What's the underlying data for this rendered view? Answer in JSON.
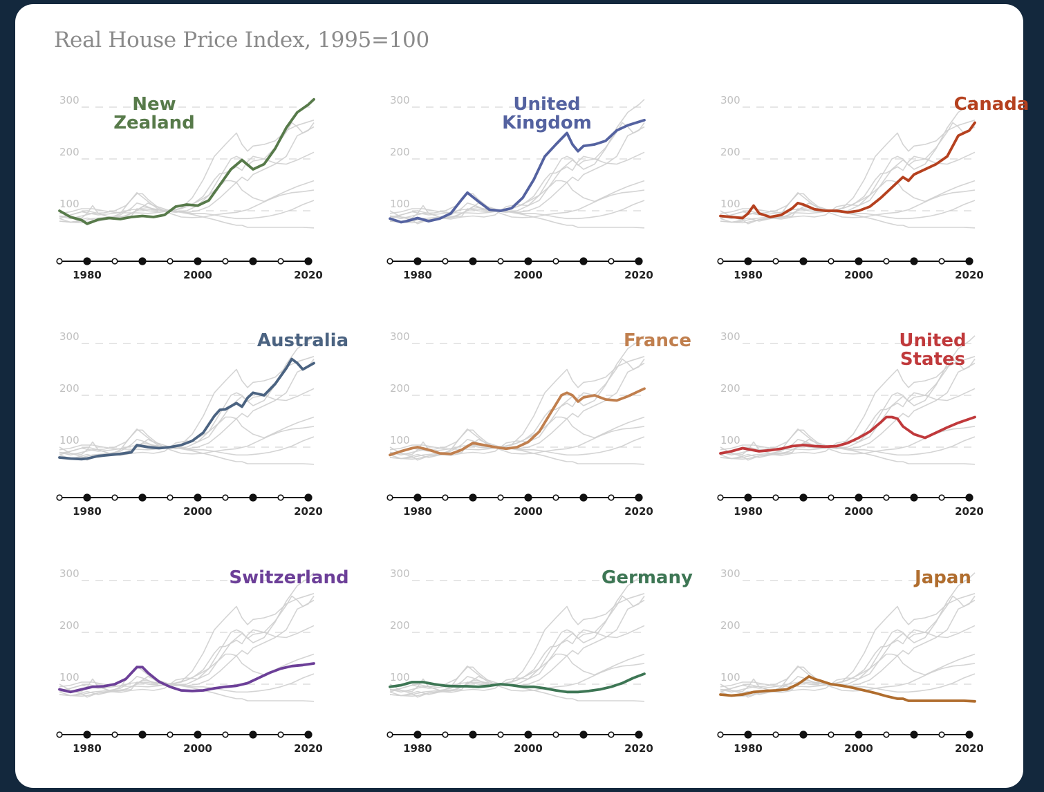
{
  "page_title": "Real House Price Index, 1995=100",
  "chart_data": {
    "type": "line",
    "title": "Real House Price Index, 1995=100",
    "xlim": [
      1975,
      2021
    ],
    "ylim": [
      0,
      300
    ],
    "y_ticks": [
      "300",
      "200",
      "100"
    ],
    "x_ticks": [
      "1980",
      "2000",
      "2020"
    ],
    "timeline_markers": [
      1975,
      1980,
      1985,
      1990,
      1995,
      2000,
      2005,
      2010,
      2015,
      2020
    ],
    "grid": "dashed-horizontal",
    "background_series_color": "#cfcfcf",
    "series": [
      {
        "name": "New Zealand",
        "label": "New\nZealand",
        "color": "#577a4a",
        "x": [
          1975,
          1977,
          1979,
          1980,
          1982,
          1984,
          1986,
          1988,
          1990,
          1992,
          1994,
          1996,
          1998,
          2000,
          2002,
          2004,
          2006,
          2008,
          2010,
          2012,
          2014,
          2016,
          2018,
          2020,
          2021
        ],
        "y": [
          100,
          88,
          82,
          75,
          83,
          86,
          84,
          88,
          90,
          88,
          92,
          108,
          112,
          110,
          120,
          150,
          180,
          198,
          180,
          190,
          220,
          260,
          290,
          305,
          315
        ]
      },
      {
        "name": "United Kingdom",
        "label": "United\nKingdom",
        "color": "#5462a0",
        "x": [
          1975,
          1977,
          1978,
          1980,
          1982,
          1984,
          1986,
          1988,
          1989,
          1991,
          1993,
          1995,
          1997,
          1999,
          2001,
          2003,
          2005,
          2007,
          2008,
          2009,
          2010,
          2012,
          2014,
          2016,
          2018,
          2021
        ],
        "y": [
          85,
          78,
          80,
          86,
          80,
          85,
          95,
          122,
          135,
          118,
          102,
          100,
          105,
          125,
          160,
          205,
          228,
          250,
          228,
          215,
          225,
          228,
          235,
          255,
          265,
          275
        ]
      },
      {
        "name": "Canada",
        "label": "Canada",
        "color": "#b5411f",
        "x": [
          1975,
          1977,
          1979,
          1980,
          1981,
          1982,
          1984,
          1986,
          1988,
          1989,
          1990,
          1992,
          1994,
          1996,
          1998,
          2000,
          2002,
          2004,
          2006,
          2008,
          2009,
          2010,
          2012,
          2014,
          2016,
          2018,
          2019,
          2020,
          2021
        ],
        "y": [
          90,
          88,
          86,
          95,
          110,
          95,
          88,
          92,
          105,
          115,
          112,
          103,
          100,
          100,
          97,
          100,
          108,
          125,
          145,
          165,
          158,
          170,
          180,
          190,
          205,
          245,
          250,
          255,
          270
        ]
      },
      {
        "name": "Australia",
        "label": "Australia",
        "color": "#4b6381",
        "x": [
          1975,
          1977,
          1979,
          1980,
          1982,
          1984,
          1986,
          1988,
          1989,
          1991,
          1993,
          1995,
          1997,
          1999,
          2001,
          2003,
          2004,
          2005,
          2007,
          2008,
          2009,
          2010,
          2012,
          2014,
          2016,
          2017,
          2018,
          2019,
          2021
        ],
        "y": [
          80,
          78,
          77,
          78,
          83,
          85,
          87,
          90,
          104,
          100,
          98,
          100,
          104,
          112,
          128,
          160,
          172,
          173,
          185,
          178,
          195,
          205,
          200,
          222,
          252,
          270,
          262,
          250,
          262
        ]
      },
      {
        "name": "France",
        "label": "France",
        "color": "#c07f4e",
        "x": [
          1975,
          1977,
          1979,
          1980,
          1982,
          1984,
          1986,
          1988,
          1990,
          1992,
          1994,
          1996,
          1998,
          2000,
          2002,
          2004,
          2006,
          2007,
          2008,
          2009,
          2010,
          2012,
          2014,
          2016,
          2018,
          2021
        ],
        "y": [
          85,
          92,
          98,
          100,
          95,
          88,
          87,
          95,
          108,
          104,
          100,
          97,
          100,
          110,
          130,
          165,
          200,
          205,
          200,
          188,
          196,
          200,
          192,
          190,
          198,
          213
        ]
      },
      {
        "name": "United States",
        "label": "United\nStates",
        "color": "#c0393b",
        "x": [
          1975,
          1977,
          1979,
          1980,
          1982,
          1984,
          1986,
          1988,
          1990,
          1992,
          1994,
          1996,
          1998,
          2000,
          2002,
          2004,
          2005,
          2006,
          2007,
          2008,
          2010,
          2012,
          2014,
          2016,
          2018,
          2021
        ],
        "y": [
          88,
          92,
          98,
          96,
          92,
          94,
          97,
          102,
          104,
          102,
          101,
          102,
          108,
          118,
          130,
          148,
          158,
          158,
          155,
          140,
          125,
          118,
          128,
          138,
          147,
          158
        ]
      },
      {
        "name": "Switzerland",
        "label": "Switzerland",
        "color": "#6c3f98",
        "x": [
          1975,
          1977,
          1979,
          1981,
          1983,
          1985,
          1987,
          1989,
          1990,
          1991,
          1993,
          1995,
          1997,
          1999,
          2001,
          2003,
          2005,
          2007,
          2009,
          2011,
          2013,
          2015,
          2017,
          2019,
          2021
        ],
        "y": [
          90,
          85,
          90,
          95,
          96,
          100,
          110,
          133,
          133,
          122,
          105,
          95,
          88,
          87,
          88,
          92,
          95,
          97,
          102,
          112,
          122,
          130,
          135,
          137,
          140
        ]
      },
      {
        "name": "Germany",
        "label": "Germany",
        "color": "#3d7654",
        "x": [
          1975,
          1977,
          1979,
          1981,
          1983,
          1985,
          1987,
          1989,
          1991,
          1993,
          1995,
          1997,
          1999,
          2001,
          2003,
          2005,
          2007,
          2009,
          2011,
          2013,
          2015,
          2017,
          2019,
          2021
        ],
        "y": [
          95,
          98,
          104,
          104,
          100,
          97,
          96,
          96,
          95,
          97,
          100,
          98,
          95,
          95,
          92,
          88,
          85,
          85,
          87,
          90,
          95,
          102,
          112,
          120
        ]
      },
      {
        "name": "Japan",
        "label": "Japan",
        "color": "#b06d2e",
        "x": [
          1975,
          1977,
          1979,
          1981,
          1983,
          1985,
          1987,
          1989,
          1991,
          1992,
          1993,
          1995,
          1997,
          1999,
          2001,
          2003,
          2005,
          2007,
          2008,
          2009,
          2011,
          2013,
          2015,
          2017,
          2019,
          2021
        ],
        "y": [
          80,
          78,
          80,
          85,
          87,
          88,
          90,
          100,
          115,
          110,
          107,
          100,
          97,
          93,
          88,
          83,
          77,
          72,
          72,
          68,
          68,
          68,
          68,
          68,
          68,
          67
        ]
      }
    ]
  }
}
